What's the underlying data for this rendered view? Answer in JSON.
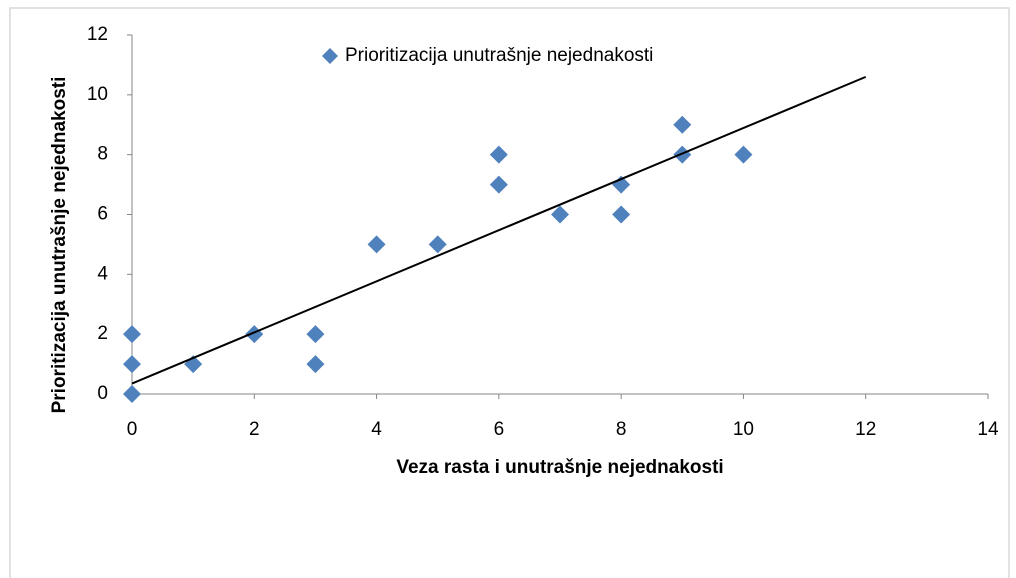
{
  "chart_data": {
    "type": "scatter",
    "xlabel": "Veza  rasta i unutrašnje nejednakosti",
    "ylabel": "Prioritizacija unutrašnje nejednakosti",
    "series": [
      {
        "name": "Prioritizacija unutrašnje nejednakosti",
        "color": "#4f81bd",
        "x": [
          0,
          0,
          0,
          1,
          2,
          3,
          3,
          4,
          5,
          6,
          6,
          7,
          8,
          8,
          9,
          9,
          10
        ],
        "values": [
          0,
          1,
          2,
          1,
          2,
          1,
          2,
          5,
          5,
          7,
          8,
          6,
          6,
          7,
          8,
          9,
          8
        ]
      }
    ],
    "trendline": {
      "color": "#000000",
      "x": [
        0,
        12
      ],
      "values": [
        0.35,
        10.6
      ]
    },
    "xlim": [
      0,
      14
    ],
    "xticks": [
      0,
      2,
      4,
      6,
      8,
      10,
      12,
      14
    ],
    "ylim": [
      0,
      12
    ],
    "yticks": [
      0,
      2,
      4,
      6,
      8,
      10,
      12
    ],
    "legend": "top"
  }
}
